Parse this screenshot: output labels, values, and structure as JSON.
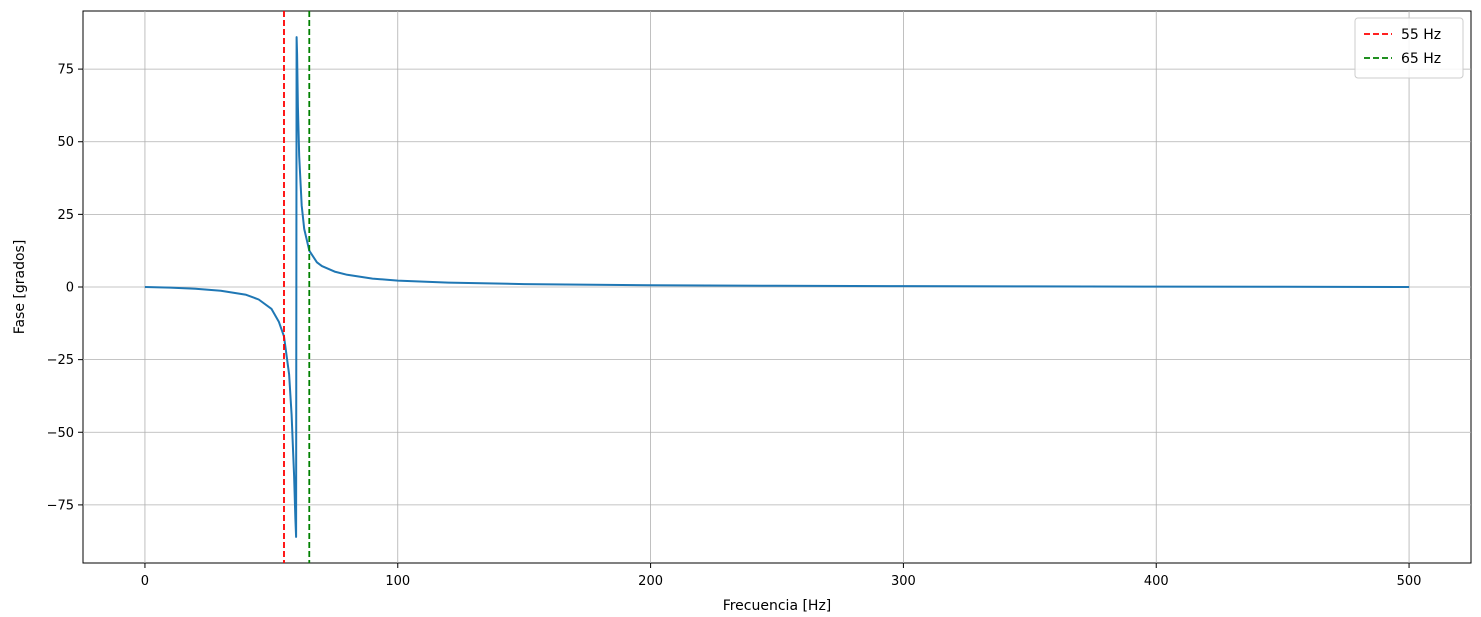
{
  "chart_data": {
    "type": "line",
    "title": "",
    "xlabel": "Frecuencia [Hz]",
    "ylabel": "Fase [grados]",
    "xlim": [
      -24.5,
      524.5
    ],
    "ylim": [
      -95,
      95
    ],
    "xticks": [
      0,
      100,
      200,
      300,
      400,
      500
    ],
    "yticks": [
      -75,
      -50,
      -25,
      0,
      25,
      50,
      75
    ],
    "ytick_labels": [
      "−75",
      "−50",
      "−25",
      "0",
      "25",
      "50",
      "75"
    ],
    "grid": true,
    "legend_position": "top-right",
    "series": [
      {
        "type": "line",
        "color": "#1f77b4",
        "x": [
          0,
          10,
          20,
          30,
          40,
          45,
          50,
          53,
          55,
          57,
          58,
          59,
          59.5,
          59.8,
          60,
          60.2,
          60.5,
          61,
          62,
          63,
          65,
          68,
          70,
          75,
          80,
          90,
          100,
          120,
          150,
          200,
          250,
          300,
          350,
          400,
          450,
          500
        ],
        "y": [
          0,
          -0.2,
          -0.6,
          -1.3,
          -2.7,
          -4.3,
          -7.5,
          -12,
          -17,
          -30,
          -44,
          -65,
          -80,
          -86,
          86,
          80,
          62,
          45,
          28,
          20,
          12.5,
          8.5,
          7.2,
          5.3,
          4.2,
          2.9,
          2.2,
          1.5,
          1.0,
          0.6,
          0.4,
          0.3,
          0.2,
          0.15,
          0.1,
          0.0
        ]
      },
      {
        "type": "vline",
        "name": "55 Hz",
        "x": 55,
        "color": "#ff0000",
        "dashed": true
      },
      {
        "type": "vline",
        "name": "65 Hz",
        "x": 65,
        "color": "#008000",
        "dashed": true
      }
    ]
  }
}
